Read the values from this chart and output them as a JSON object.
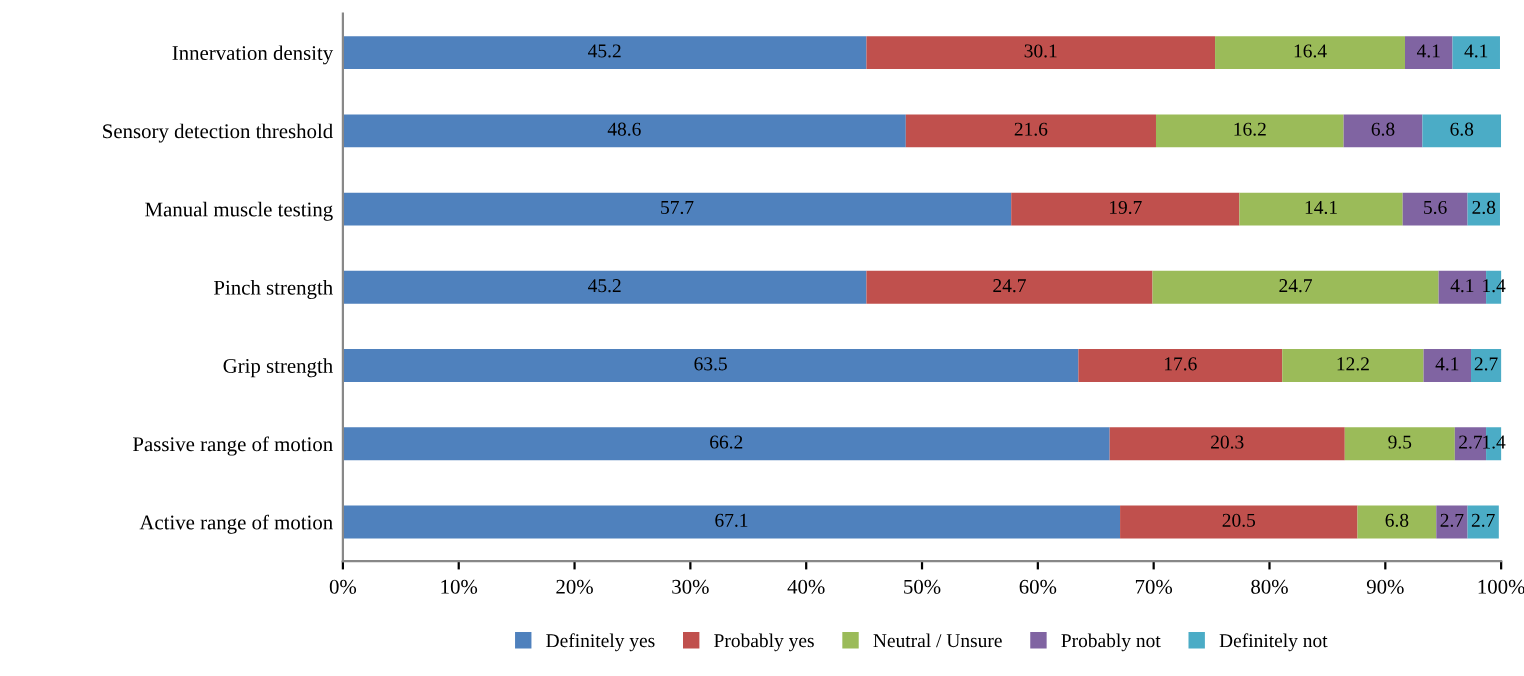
{
  "chart_data": {
    "type": "bar",
    "orientation": "horizontal",
    "stacked": true,
    "data_labels": true,
    "legend": "bottom",
    "grid": false,
    "categories": [
      "Innervation density",
      "Sensory detection threshold",
      "Manual muscle testing",
      "Pinch strength",
      "Grip strength",
      "Passive range of motion",
      "Active range of motion"
    ],
    "series": [
      {
        "name": "Definitely yes",
        "color": "#4f81bd",
        "values": [
          45.2,
          48.6,
          57.7,
          45.2,
          63.5,
          66.2,
          67.1
        ]
      },
      {
        "name": "Probably yes",
        "color": "#c0504d",
        "values": [
          30.1,
          21.6,
          19.7,
          24.7,
          17.6,
          20.3,
          20.5
        ]
      },
      {
        "name": "Neutral / Unsure",
        "color": "#9bbb59",
        "values": [
          16.4,
          16.2,
          14.1,
          24.7,
          12.2,
          9.5,
          6.8
        ]
      },
      {
        "name": "Probably not",
        "color": "#8064a2",
        "values": [
          4.1,
          6.8,
          5.6,
          4.1,
          4.1,
          2.7,
          2.7
        ]
      },
      {
        "name": "Definitely not",
        "color": "#4bacc6",
        "values": [
          4.1,
          6.8,
          2.8,
          1.4,
          2.7,
          1.4,
          2.7
        ]
      }
    ],
    "xlim": [
      0,
      100
    ],
    "xticks": [
      {
        "value": 0,
        "label": "0%"
      },
      {
        "value": 10,
        "label": "10%"
      },
      {
        "value": 20,
        "label": "20%"
      },
      {
        "value": 30,
        "label": "30%"
      },
      {
        "value": 40,
        "label": "40%"
      },
      {
        "value": 50,
        "label": "50%"
      },
      {
        "value": 60,
        "label": "60%"
      },
      {
        "value": 70,
        "label": "70%"
      },
      {
        "value": 80,
        "label": "80%"
      },
      {
        "value": 90,
        "label": "90%"
      },
      {
        "value": 100,
        "label": "100%"
      }
    ]
  }
}
